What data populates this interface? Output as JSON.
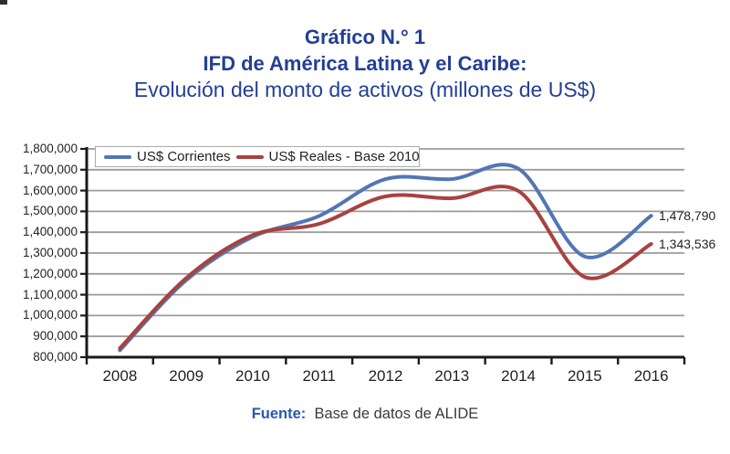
{
  "title": {
    "line1": "Gráfico N.° 1",
    "line2": "IFD de América Latina y el Caribe:",
    "line3": "Evolución del monto de activos (millones de US$)"
  },
  "legend": {
    "items": [
      {
        "label": "US$ Corrientes",
        "color": "#5276b4"
      },
      {
        "label": "US$ Reales - Base 2010",
        "color": "#a8423f"
      }
    ]
  },
  "end_labels": {
    "corrientes": "1,478,790",
    "reales": "1,343,536"
  },
  "footer": {
    "prefix": "Fuente:",
    "text": "Base de datos de ALIDE"
  },
  "colors": {
    "title_blue": "#233f94",
    "footer_blue": "#2b57b0",
    "axis_black": "#1a1a1a",
    "grid_gray": "#9b9b9b",
    "text_dark": "#231f20",
    "series_blue": "#5276b4",
    "series_red": "#a8423f"
  },
  "chart_data": {
    "type": "line",
    "smooth": true,
    "x": [
      2008,
      2009,
      2010,
      2011,
      2012,
      2013,
      2014,
      2015,
      2016
    ],
    "series": [
      {
        "name": "US$ Corrientes",
        "color": "#5276b4",
        "values": [
          833000,
          1170000,
          1378000,
          1478000,
          1655000,
          1655000,
          1705000,
          1283000,
          1478790
        ]
      },
      {
        "name": "US$ Reales - Base 2010",
        "color": "#a8423f",
        "values": [
          843000,
          1180000,
          1386000,
          1440000,
          1572000,
          1563000,
          1598000,
          1185000,
          1343536
        ]
      }
    ],
    "ylim": [
      800000,
      1800000
    ],
    "y_tick_step": 100000,
    "y_tick_labels": [
      "800,000",
      "900,000",
      "1,000,000",
      "1,100,000",
      "1,200,000",
      "1,300,000",
      "1,400,000",
      "1,500,000",
      "1,600,000",
      "1,700,000",
      "1,800,000"
    ],
    "grid": true,
    "legend_position": "top-left",
    "end_annotations": [
      "1,478,790",
      "1,343,536"
    ],
    "title": "Gráfico N.° 1 — IFD de América Latina y el Caribe: Evolución del monto de activos (millones de US$)",
    "xlabel": "",
    "ylabel": ""
  }
}
